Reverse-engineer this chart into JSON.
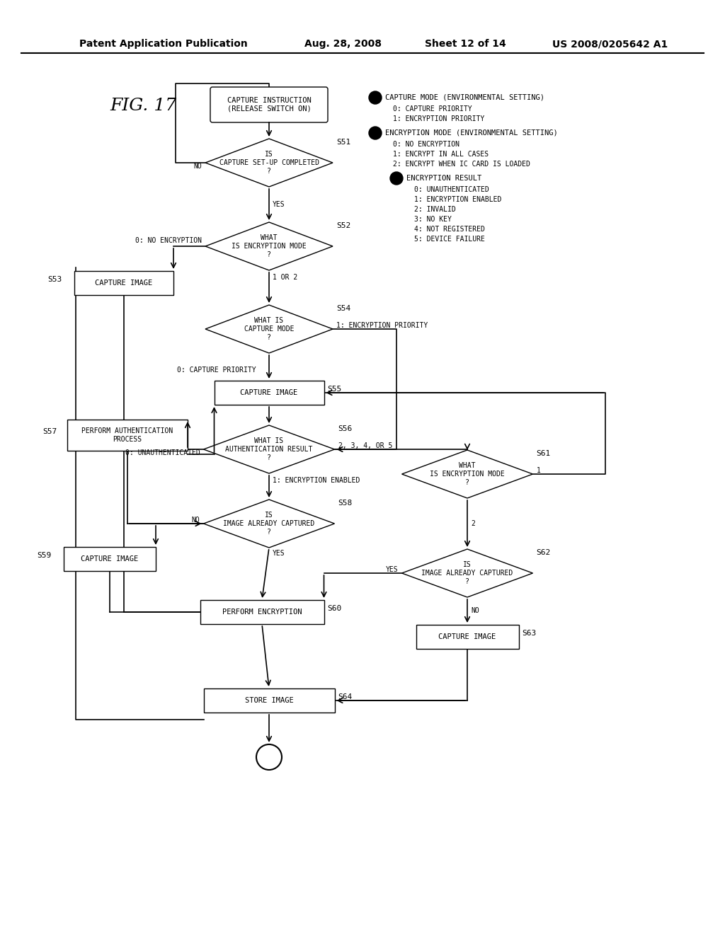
{
  "title_header": "Patent Application Publication",
  "date_header": "Aug. 28, 2008",
  "sheet_header": "Sheet 12 of 14",
  "patent_header": "US 2008/0205642 A1",
  "fig_label": "FIG. 17",
  "bg_color": "#ffffff"
}
